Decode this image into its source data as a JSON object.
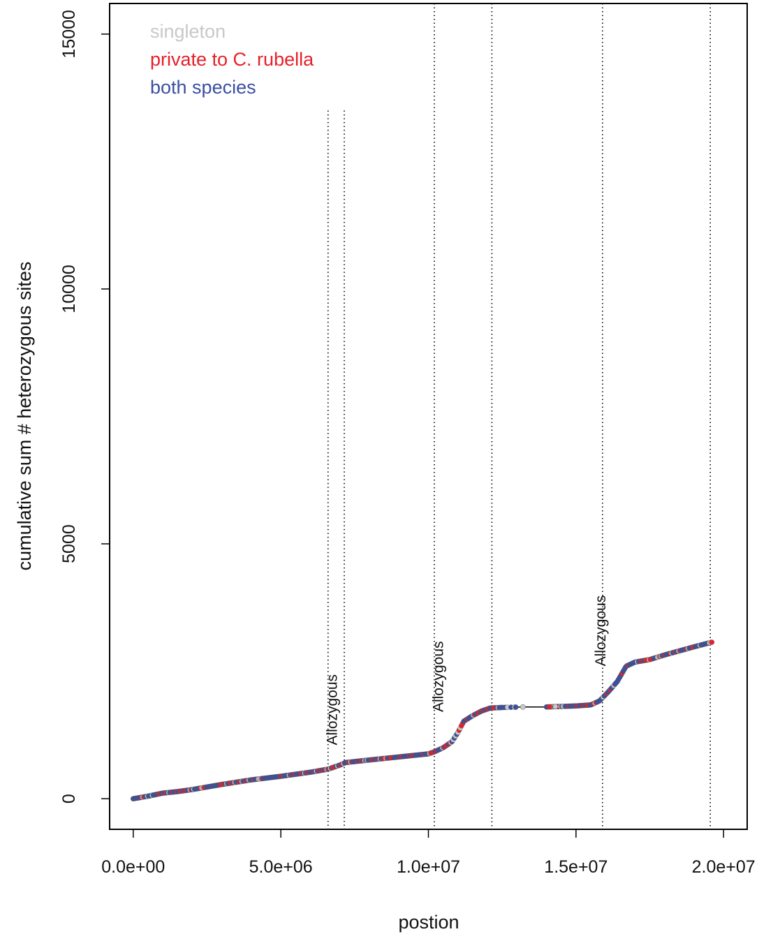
{
  "chart_data": {
    "type": "scatter",
    "title": "",
    "xlabel": "postion",
    "ylabel": "cumulative sum # heterozygous sites",
    "xlim": [
      -800000,
      20800000
    ],
    "ylim": [
      -600,
      15600
    ],
    "x_ticks": [
      0,
      5000000,
      10000000,
      15000000,
      20000000
    ],
    "x_tick_labels": [
      "0.0e+00",
      "5.0e+06",
      "1.0e+07",
      "1.5e+07",
      "2.0e+07"
    ],
    "y_ticks": [
      0,
      5000,
      10000,
      15000
    ],
    "y_tick_labels": [
      "0",
      "5000",
      "10000",
      "15000"
    ],
    "grid": false,
    "legend_position": "top-left",
    "legend": [
      {
        "label": "singleton",
        "color": "#c8c8c8"
      },
      {
        "label": "private to C. rubella",
        "color": "#e8202a"
      },
      {
        "label": "both species",
        "color": "#3a4fa3"
      }
    ],
    "colors": {
      "singleton": "#c8c8c8",
      "private": "#e8202a",
      "both": "#3a4fa3",
      "line": "#000000"
    },
    "cumulative_curve": {
      "x": [
        0,
        500000,
        1000000,
        1500000,
        2000000,
        3000000,
        4000000,
        5000000,
        6000000,
        6600000,
        7000000,
        7200000,
        8000000,
        9000000,
        10000000,
        10200000,
        10500000,
        10800000,
        11000000,
        11200000,
        11500000,
        11800000,
        12100000,
        12500000,
        13200000,
        14000000,
        14500000,
        15000000,
        15500000,
        15800000,
        16100000,
        16400000,
        16700000,
        17000000,
        17500000,
        18000000,
        18500000,
        19000000,
        19600000
      ],
      "y": [
        0,
        50,
        110,
        140,
        180,
        280,
        370,
        440,
        520,
        580,
        660,
        710,
        760,
        820,
        880,
        920,
        1000,
        1120,
        1300,
        1520,
        1630,
        1720,
        1780,
        1790,
        1800,
        1800,
        1810,
        1820,
        1840,
        1920,
        2100,
        2300,
        2600,
        2680,
        2730,
        2820,
        2900,
        2980,
        3070
      ]
    },
    "vertical_lines": [
      6600000,
      7150000,
      10200000,
      12150000,
      15900000,
      19550000
    ],
    "annotations": [
      {
        "text": "Allozygous",
        "x": 6900000,
        "y": 1050
      },
      {
        "text": "Allozygous",
        "x": 10500000,
        "y": 1700
      },
      {
        "text": "Allozygous",
        "x": 16000000,
        "y": 2600
      }
    ]
  }
}
